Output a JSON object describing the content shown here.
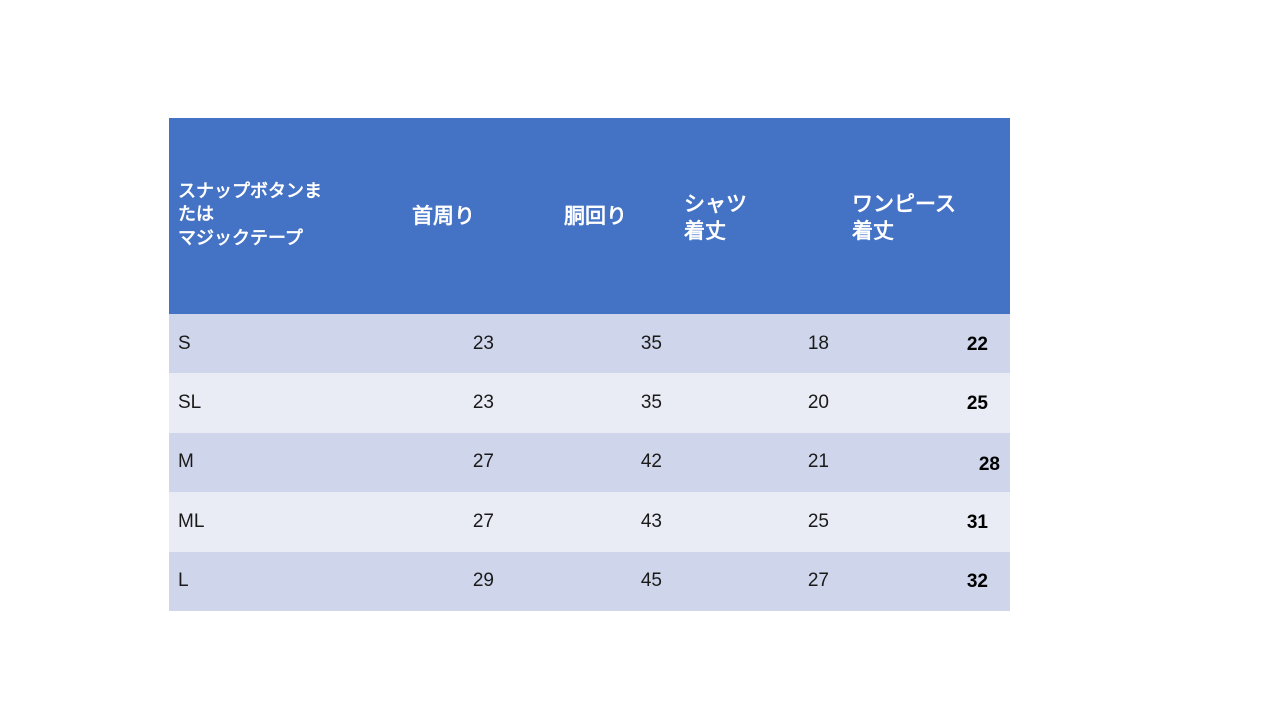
{
  "table": {
    "headers": [
      [
        "スナップボタンま",
        "たは",
        "マジックテープ"
      ],
      [
        "首周り"
      ],
      [
        "胴回り"
      ],
      [
        "シャツ",
        "着丈"
      ],
      [
        "ワンピース",
        "着丈"
      ]
    ],
    "rows": [
      {
        "size": "S",
        "neck": "23",
        "waist": "35",
        "shirt_length": "18",
        "dress_length": "22"
      },
      {
        "size": "SL",
        "neck": "23",
        "waist": "35",
        "shirt_length": "20",
        "dress_length": "25"
      },
      {
        "size": "M",
        "neck": "27",
        "waist": "42",
        "shirt_length": "21",
        "dress_length": "28"
      },
      {
        "size": "ML",
        "neck": "27",
        "waist": "43",
        "shirt_length": "25",
        "dress_length": "31"
      },
      {
        "size": "L",
        "neck": "29",
        "waist": "45",
        "shirt_length": "27",
        "dress_length": "32"
      }
    ]
  },
  "colors": {
    "header_bg": "#4472c4",
    "row_dark": "#cfd5ea",
    "row_light": "#e9ebf5"
  }
}
